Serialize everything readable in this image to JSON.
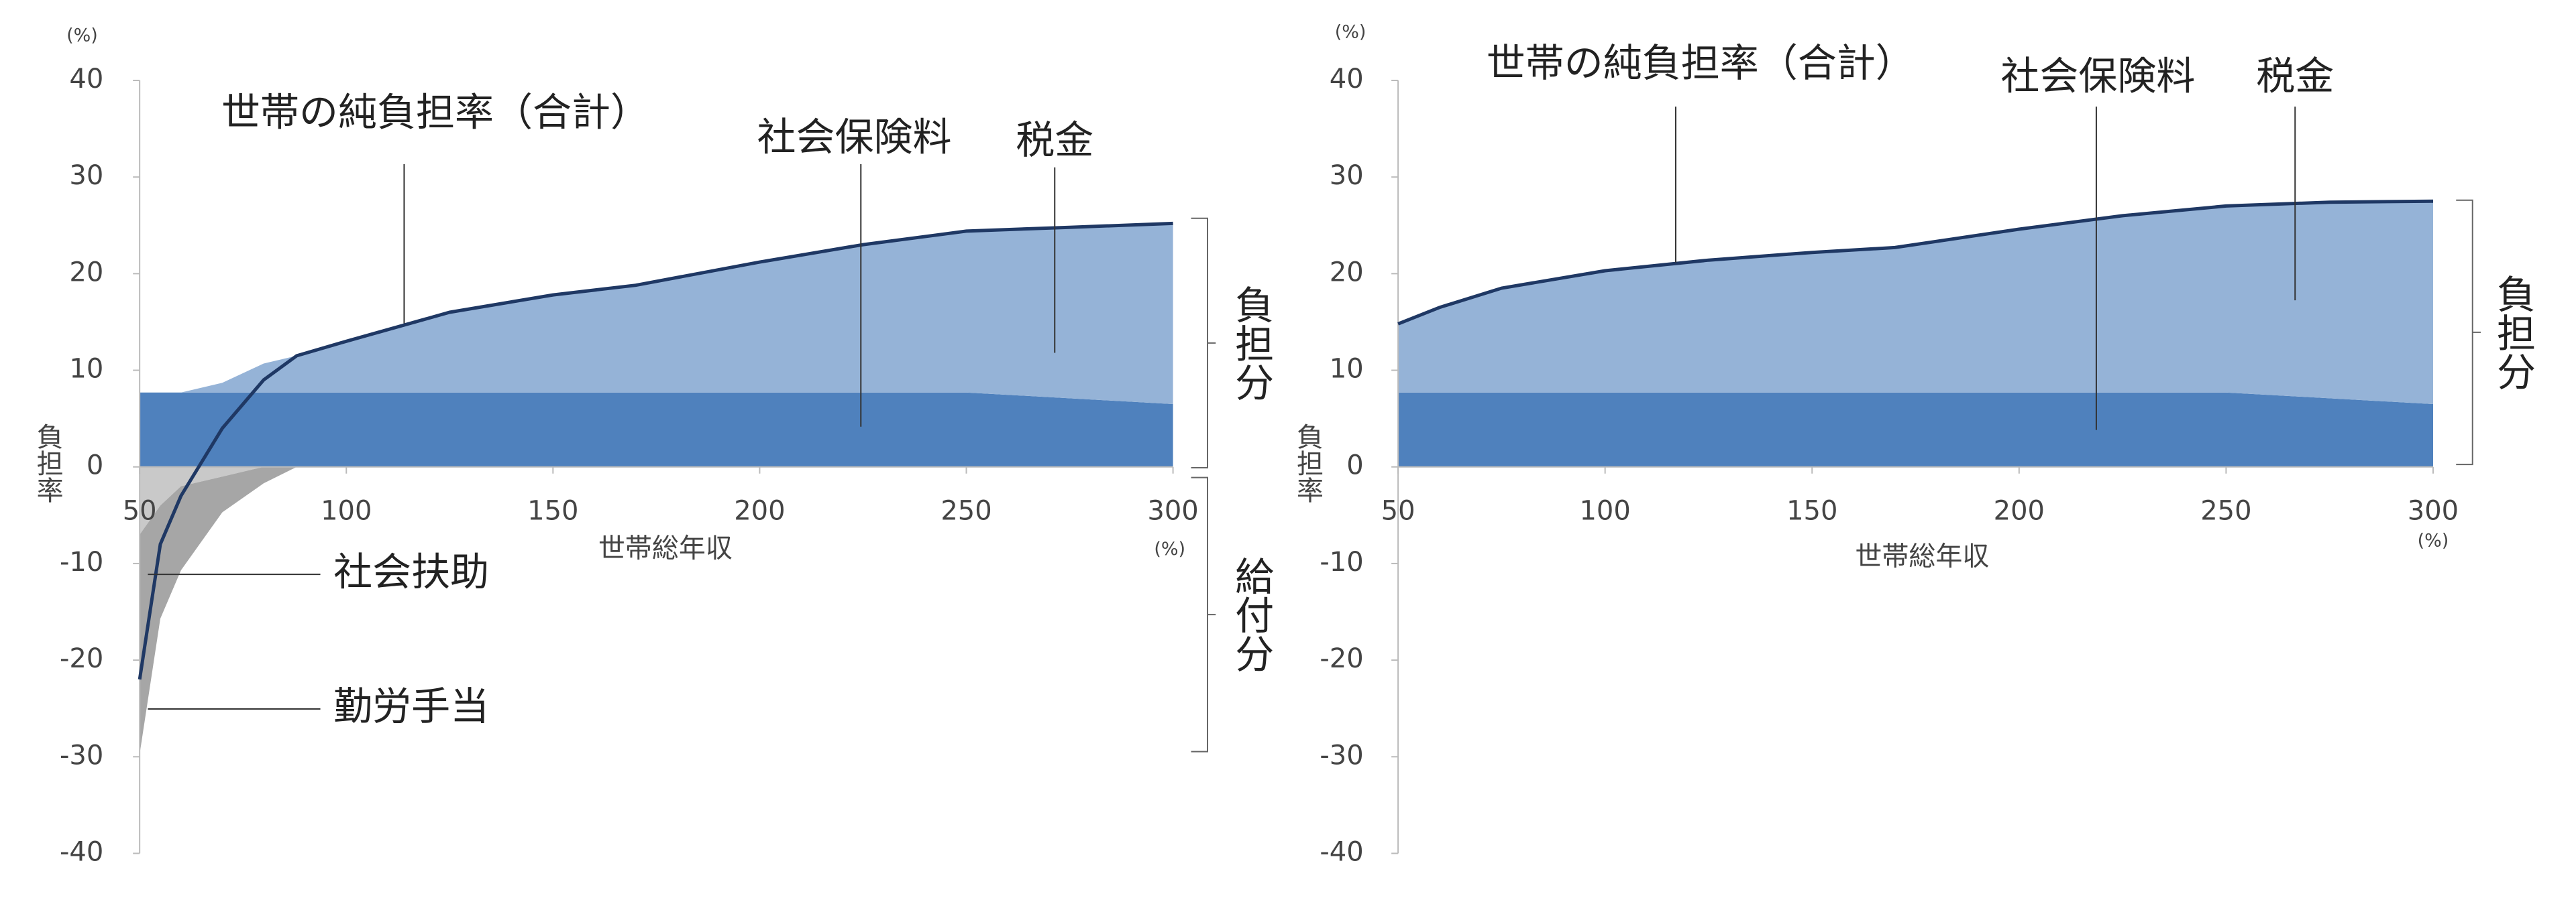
{
  "chart_data": [
    {
      "type": "area",
      "y_unit": "(%)",
      "x_unit": "(%)",
      "x_label": "世帯総年収",
      "y_label": "負担率",
      "x": [
        50,
        55,
        60,
        70,
        80,
        88,
        100,
        125,
        150,
        170,
        200,
        225,
        250,
        275,
        300
      ],
      "xlim": [
        50,
        300
      ],
      "xticks": [
        50,
        100,
        150,
        200,
        250,
        300
      ],
      "ylim": [
        -40,
        40
      ],
      "yticks": [
        -40,
        -30,
        -20,
        -10,
        0,
        10,
        20,
        30,
        40
      ],
      "series": [
        {
          "name": "社会保険料",
          "kind": "area",
          "color": "#4f81bd",
          "values": [
            7.7,
            7.7,
            7.7,
            7.7,
            7.7,
            7.7,
            7.7,
            7.7,
            7.7,
            7.7,
            7.7,
            7.7,
            7.7,
            7.1,
            6.5
          ]
        },
        {
          "name": "税金",
          "kind": "area",
          "color": "#95b3d7",
          "values": [
            0,
            0,
            0,
            1,
            3,
            3.8,
            5.3,
            8.3,
            10.1,
            11.1,
            13.5,
            15.3,
            16.7,
            17.7,
            18.7
          ]
        },
        {
          "name": "社会扶助",
          "kind": "area",
          "color": "#c9c9c9",
          "values": [
            -7,
            -4,
            -2,
            -1,
            0,
            0,
            0,
            0,
            0,
            0,
            0,
            0,
            0,
            0,
            0
          ]
        },
        {
          "name": "勤労手当",
          "kind": "area",
          "color": "#a6a6a6",
          "values": [
            -22.7,
            -11.7,
            -8.7,
            -3.7,
            -1.7,
            0,
            0,
            0,
            0,
            0,
            0,
            0,
            0,
            0,
            0
          ]
        },
        {
          "name": "世帯の純負担率（合計）",
          "kind": "line",
          "color": "#1f3864",
          "values": [
            -22,
            -8,
            -3,
            4,
            9,
            11.5,
            13,
            16,
            17.8,
            18.8,
            21.2,
            23,
            24.4,
            24.8,
            25.2
          ]
        }
      ],
      "annotations": [
        "負担分",
        "給付分"
      ]
    },
    {
      "type": "area",
      "y_unit": "(%)",
      "x_unit": "(%)",
      "x_label": "世帯総年収",
      "y_label": "負担率",
      "x": [
        50,
        60,
        75,
        100,
        125,
        150,
        170,
        200,
        225,
        250,
        275,
        300
      ],
      "xlim": [
        50,
        300
      ],
      "xticks": [
        50,
        100,
        150,
        200,
        250,
        300
      ],
      "ylim": [
        -40,
        40
      ],
      "yticks": [
        -40,
        -30,
        -20,
        -10,
        0,
        10,
        20,
        30,
        40
      ],
      "series": [
        {
          "name": "社会保険料",
          "kind": "area",
          "color": "#4f81bd",
          "values": [
            7.7,
            7.7,
            7.7,
            7.7,
            7.7,
            7.7,
            7.7,
            7.7,
            7.7,
            7.7,
            7.1,
            6.5
          ]
        },
        {
          "name": "税金",
          "kind": "area",
          "color": "#95b3d7",
          "values": [
            7.1,
            8.8,
            10.8,
            12.6,
            13.7,
            14.5,
            15,
            16.9,
            18.3,
            19.3,
            20.3,
            21
          ]
        },
        {
          "name": "世帯の純負担率（合計）",
          "kind": "line",
          "color": "#1f3864",
          "values": [
            14.8,
            16.5,
            18.5,
            20.3,
            21.4,
            22.2,
            22.7,
            24.6,
            26,
            27,
            27.4,
            27.5
          ]
        }
      ],
      "annotations": [
        "負担分"
      ]
    }
  ]
}
